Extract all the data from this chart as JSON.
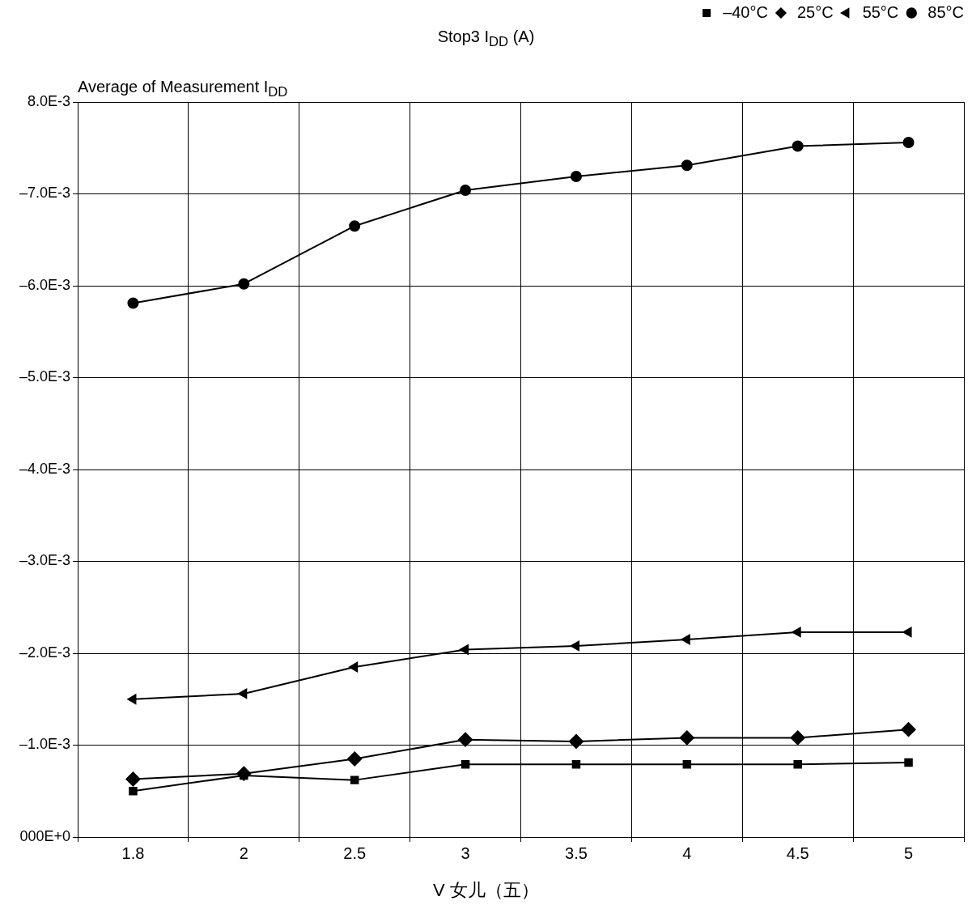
{
  "chart_data": {
    "type": "line",
    "title": "Stop3 I$_{DD}$ (A)",
    "subtitle": "Average of Measurement I$_{DD}$",
    "xlabel": "V 女儿（五）",
    "categories": [
      "1.8",
      "2",
      "2.5",
      "3",
      "3.5",
      "4",
      "4.5",
      "5"
    ],
    "series": [
      {
        "name": "–40°C",
        "color": "#000000",
        "marker": "square",
        "values": [
          0.0005,
          0.00067,
          0.00062,
          0.00079,
          0.00079,
          0.00079,
          0.00079,
          0.00081
        ]
      },
      {
        "name": "25°C",
        "color": "#000000",
        "marker": "diamond",
        "values": [
          0.00063,
          0.00069,
          0.00085,
          0.00106,
          0.00104,
          0.00108,
          0.00108,
          0.00117
        ]
      },
      {
        "name": "55°C",
        "color": "#000000",
        "marker": "triangle",
        "values": [
          0.0015,
          0.00156,
          0.00185,
          0.00204,
          0.00208,
          0.00215,
          0.00223,
          0.00223
        ]
      },
      {
        "name": "85°C",
        "color": "#000000",
        "marker": "circle",
        "values": [
          0.00581,
          0.00602,
          0.00665,
          0.00704,
          0.00719,
          0.00731,
          0.00752,
          0.00756
        ]
      }
    ],
    "ylim": [
      0,
      0.008
    ],
    "yticks": [
      {
        "value": 0.008,
        "label": "8.0E-3"
      },
      {
        "value": 0.007,
        "label": "–7.0E-3"
      },
      {
        "value": 0.006,
        "label": "–6.0E-3"
      },
      {
        "value": 0.005,
        "label": "–5.0E-3"
      },
      {
        "value": 0.004,
        "label": "–4.0E-3"
      },
      {
        "value": 0.003,
        "label": "–3.0E-3"
      },
      {
        "value": 0.002,
        "label": "–2.0E-3"
      },
      {
        "value": 0.001,
        "label": "–1.0E-3"
      },
      {
        "value": 0,
        "label": "000E+0"
      }
    ],
    "grid": true,
    "legend": "top right",
    "line_style": "solid"
  }
}
